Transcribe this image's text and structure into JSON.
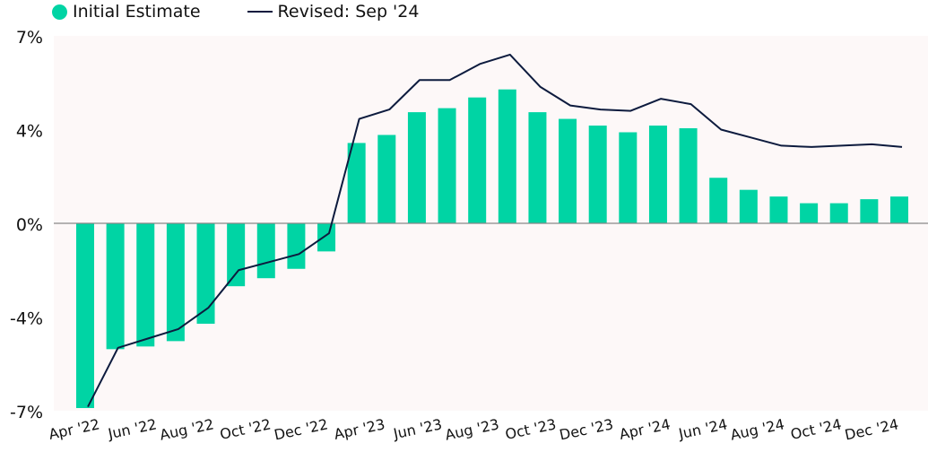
{
  "chart_data": {
    "type": "bar",
    "title": "",
    "xlabel": "",
    "ylabel": "",
    "ylim": [
      -7,
      7
    ],
    "y_ticks": [
      7,
      3.5,
      0,
      -3.5,
      -7
    ],
    "y_tick_labels": [
      "7%",
      "4%",
      "0%",
      "-4%",
      "-7%"
    ],
    "x_tick_labels": [
      "Apr '22",
      "Jun '22",
      "Aug '22",
      "Oct '22",
      "Dec '22",
      "Apr '23",
      "Jun '23",
      "Aug '23",
      "Oct '23",
      "Dec '23",
      "Apr '24",
      "Jun '24",
      "Aug '24",
      "Oct '24",
      "Dec '24"
    ],
    "legend": {
      "position": "top-left"
    },
    "grid": false,
    "series": [
      {
        "name": "Initial Estimate",
        "type": "bar",
        "color": "#00d4a4",
        "values": [
          -6.9,
          -4.7,
          -4.6,
          -4.4,
          -3.75,
          -2.35,
          -2.05,
          -1.7,
          -1.05,
          3.0,
          3.3,
          4.15,
          4.3,
          4.7,
          5.0,
          4.15,
          3.9,
          3.65,
          3.4,
          3.65,
          3.55,
          1.7,
          1.25,
          1.0,
          0.75,
          0.75,
          0.9,
          1.0
        ]
      },
      {
        "name": "Revised: Sep '24",
        "type": "line",
        "color": "#0d1b3e",
        "values": [
          -6.85,
          -4.65,
          -4.3,
          -3.95,
          -3.15,
          -1.75,
          -1.45,
          -1.15,
          -0.37,
          3.9,
          4.25,
          5.35,
          5.35,
          5.95,
          6.3,
          5.1,
          4.4,
          4.25,
          4.2,
          4.65,
          4.45,
          3.5,
          3.2,
          2.9,
          2.85,
          2.9,
          2.95,
          2.85
        ]
      }
    ]
  }
}
